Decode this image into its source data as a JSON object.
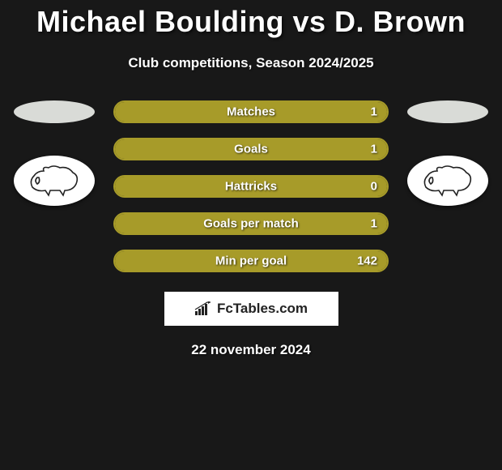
{
  "header": {
    "title": "Michael Boulding vs D. Brown",
    "subtitle": "Club competitions, Season 2024/2025"
  },
  "colors": {
    "left_player": "#d9dbd7",
    "right_player": "#d9dbd7",
    "bar_fill": "#a79b29",
    "bar_border": "#a79b29",
    "background": "#181818",
    "brand_bg": "#ffffff"
  },
  "stats": [
    {
      "label": "Matches",
      "left_pct": 0,
      "right_pct": 100,
      "right_value": "1"
    },
    {
      "label": "Goals",
      "left_pct": 0,
      "right_pct": 100,
      "right_value": "1"
    },
    {
      "label": "Hattricks",
      "left_pct": 0,
      "right_pct": 100,
      "right_value": "0"
    },
    {
      "label": "Goals per match",
      "left_pct": 0,
      "right_pct": 100,
      "right_value": "1"
    },
    {
      "label": "Min per goal",
      "left_pct": 0,
      "right_pct": 100,
      "right_value": "142"
    }
  ],
  "brand": {
    "text": "FcTables.com"
  },
  "footer": {
    "date": "22 november 2024"
  }
}
